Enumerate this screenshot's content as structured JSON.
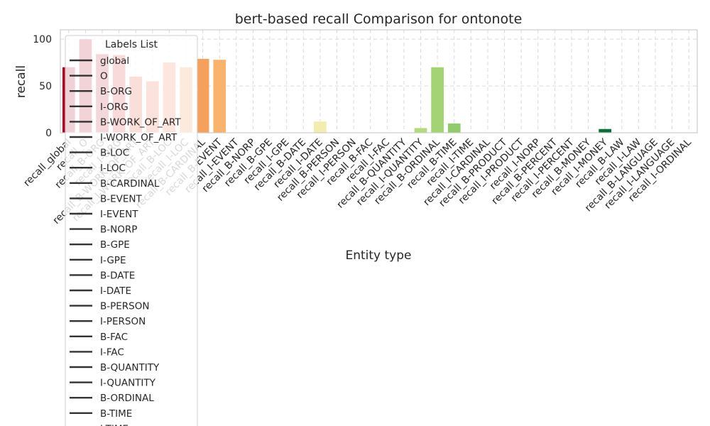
{
  "chart_data": {
    "type": "bar",
    "title": "bert-based recall Comparison for ontonote",
    "xlabel": "Entity type",
    "ylabel": "recall",
    "ylim": [
      0,
      110
    ],
    "yticks": [
      0,
      50,
      100
    ],
    "grid": true,
    "legend": {
      "title": "Labels List",
      "placement": "upper-left",
      "entries": [
        "global",
        "O",
        "B-ORG",
        "I-ORG",
        "B-WORK_OF_ART",
        "I-WORK_OF_ART",
        "B-LOC",
        "I-LOC",
        "B-CARDINAL",
        "B-EVENT",
        "I-EVENT",
        "B-NORP",
        "B-GPE",
        "I-GPE",
        "B-DATE",
        "I-DATE",
        "B-PERSON",
        "I-PERSON",
        "B-FAC",
        "I-FAC",
        "B-QUANTITY",
        "I-QUANTITY",
        "B-ORDINAL",
        "B-TIME",
        "I-TIME"
      ]
    },
    "categories": [
      "recall_global",
      "recall_O",
      "recall_B-ORG",
      "recall_I-ORG",
      "recall_B-WORK_OF_ART",
      "recall_I-WORK_OF_ART",
      "recall_B-LOC",
      "recall_I-LOC",
      "recall_B-CARDINAL",
      "recall_B-EVENT",
      "recall_I-EVENT",
      "recall_B-NORP",
      "recall_B-GPE",
      "recall_I-GPE",
      "recall_B-DATE",
      "recall_I-DATE",
      "recall_B-PERSON",
      "recall_I-PERSON",
      "recall_B-FAC",
      "recall_I-FAC",
      "recall_B-QUANTITY",
      "recall_I-QUANTITY",
      "recall_B-ORDINAL",
      "recall_B-TIME",
      "recall_I-TIME",
      "recall_I-CARDINAL",
      "recall_B-PRODUCT",
      "recall_I-PRODUCT",
      "recall_I-NORP",
      "recall_B-PERCENT",
      "recall_I-PERCENT",
      "recall_B-MONEY",
      "recall_I-MONEY",
      "recall_B-LAW",
      "recall_I-LAW",
      "recall_B-LANGUAGE",
      "recall_I-LANGUAGE",
      "recall_I-ORDINAL"
    ],
    "values": [
      70,
      100,
      84,
      83,
      60,
      55,
      75,
      70,
      79,
      78,
      0,
      0,
      0,
      0,
      0,
      12,
      0,
      0,
      0,
      0,
      0,
      5,
      70,
      10,
      0,
      0,
      0,
      0,
      0,
      0,
      0,
      0,
      4,
      0,
      0,
      0,
      0,
      0
    ],
    "colors": [
      "#a50026",
      "#b50f26",
      "#c4232a",
      "#d3362f",
      "#de4b34",
      "#e6613c",
      "#ee7746",
      "#f48b51",
      "#f6a05e",
      "#f9b36d",
      "#fbc57c",
      "#fdd58b",
      "#fee49a",
      "#fdeba6",
      "#f7ecab",
      "#f2ecaf",
      "#ecebab",
      "#e4eca3",
      "#d9ec98",
      "#cde88e",
      "#c0e185",
      "#b2da7d",
      "#a3d374",
      "#92cb6c",
      "#80c265",
      "#6eba61",
      "#5cb15c",
      "#4aa756",
      "#3a9c50",
      "#2c914a",
      "#208545",
      "#167940",
      "#0d6d3a",
      "#066234",
      "#02582f",
      "#004f2b",
      "#004627",
      "#003d23"
    ]
  }
}
